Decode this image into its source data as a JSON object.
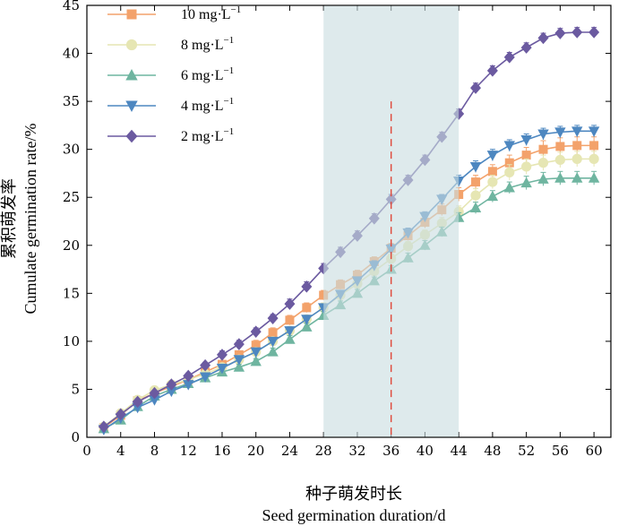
{
  "chart_data": {
    "type": "line",
    "title": "",
    "xlabel_zh": "种子萌发时长",
    "xlabel": "Seed germination duration/d",
    "ylabel_zh": "累积萌发率",
    "ylabel": "Cumulate germination rate/%",
    "xlim": [
      0,
      62
    ],
    "ylim": [
      0,
      45
    ],
    "xticks": [
      0,
      4,
      8,
      12,
      16,
      20,
      24,
      28,
      32,
      36,
      40,
      44,
      48,
      52,
      56,
      60
    ],
    "yticks": [
      0,
      5,
      10,
      15,
      20,
      25,
      30,
      35,
      40,
      45
    ],
    "x": [
      2,
      4,
      6,
      8,
      10,
      12,
      14,
      16,
      18,
      20,
      22,
      24,
      26,
      28,
      30,
      32,
      34,
      36,
      38,
      40,
      42,
      44,
      46,
      48,
      50,
      52,
      54,
      56,
      58,
      60
    ],
    "highlight_region": [
      28,
      44
    ],
    "reference_line_x": 36,
    "legend_position": "top-left",
    "series": [
      {
        "name_value": "10",
        "name_unit": " mg·L",
        "name_sup": "−1",
        "color": "#f3a26b",
        "marker": "square",
        "values": [
          1.0,
          2.3,
          3.8,
          4.6,
          5.3,
          6.0,
          6.8,
          7.6,
          8.6,
          9.6,
          10.9,
          12.2,
          13.5,
          14.8,
          15.9,
          16.9,
          18.3,
          19.7,
          21.0,
          22.4,
          23.7,
          25.3,
          26.6,
          27.7,
          28.6,
          29.4,
          30.0,
          30.3,
          30.4,
          30.4
        ],
        "errors": [
          0.3,
          0.3,
          0.3,
          0.3,
          0.3,
          0.4,
          0.4,
          0.4,
          0.4,
          0.5,
          0.5,
          0.5,
          0.5,
          0.5,
          0.5,
          0.5,
          0.5,
          0.5,
          0.5,
          0.6,
          0.6,
          0.7,
          0.7,
          0.7,
          0.8,
          0.8,
          0.9,
          0.9,
          0.9,
          0.9
        ]
      },
      {
        "name_value": "8",
        "name_unit": " mg·L",
        "name_sup": "−1",
        "color": "#e6e6b3",
        "marker": "circle",
        "values": [
          1.1,
          2.5,
          3.9,
          4.9,
          5.5,
          6.0,
          6.6,
          7.3,
          8.1,
          8.9,
          10.0,
          11.1,
          12.3,
          13.5,
          14.8,
          16.0,
          17.3,
          18.6,
          19.9,
          21.1,
          22.3,
          23.5,
          25.2,
          26.6,
          27.6,
          28.2,
          28.6,
          28.9,
          29.0,
          29.0
        ],
        "errors": [
          0.3,
          0.3,
          0.3,
          0.3,
          0.3,
          0.3,
          0.3,
          0.4,
          0.4,
          0.4,
          0.4,
          0.4,
          0.4,
          0.5,
          0.5,
          0.5,
          0.5,
          0.5,
          0.5,
          0.5,
          0.6,
          0.6,
          0.7,
          0.7,
          0.8,
          0.8,
          0.8,
          0.8,
          0.8,
          0.8
        ]
      },
      {
        "name_value": "6",
        "name_unit": " mg·L",
        "name_sup": "−1",
        "color": "#6fb5a0",
        "marker": "triangle-up",
        "values": [
          0.9,
          1.8,
          3.2,
          4.3,
          5.0,
          5.6,
          6.2,
          6.8,
          7.3,
          7.9,
          8.9,
          10.2,
          11.5,
          12.7,
          13.8,
          15.0,
          16.3,
          17.5,
          18.7,
          20.0,
          21.4,
          22.9,
          23.9,
          25.1,
          26.0,
          26.5,
          26.9,
          27.0,
          27.0,
          27.0
        ],
        "errors": [
          0.3,
          0.3,
          0.3,
          0.3,
          0.3,
          0.3,
          0.3,
          0.3,
          0.3,
          0.3,
          0.4,
          0.4,
          0.4,
          0.4,
          0.4,
          0.4,
          0.4,
          0.4,
          0.5,
          0.5,
          0.5,
          0.5,
          0.6,
          0.6,
          0.6,
          0.7,
          0.7,
          0.7,
          0.7,
          0.7
        ]
      },
      {
        "name_value": "4",
        "name_unit": " mg·L",
        "name_sup": "−1",
        "color": "#4d87c0",
        "marker": "triangle-down",
        "values": [
          0.8,
          2.0,
          3.1,
          3.9,
          4.8,
          5.5,
          6.3,
          7.2,
          8.1,
          8.9,
          10.0,
          11.1,
          12.3,
          13.5,
          14.9,
          16.3,
          17.9,
          19.6,
          21.3,
          23.0,
          24.8,
          26.7,
          28.2,
          29.4,
          30.4,
          31.0,
          31.6,
          31.8,
          31.9,
          31.9
        ],
        "errors": [
          0.2,
          0.3,
          0.3,
          0.3,
          0.3,
          0.3,
          0.3,
          0.3,
          0.3,
          0.3,
          0.4,
          0.4,
          0.4,
          0.4,
          0.4,
          0.4,
          0.5,
          0.5,
          0.5,
          0.5,
          0.5,
          0.6,
          0.6,
          0.6,
          0.6,
          0.6,
          0.6,
          0.6,
          0.6,
          0.6
        ]
      },
      {
        "name_value": "2",
        "name_unit": " mg·L",
        "name_sup": "−1",
        "color": "#6b5aa0",
        "marker": "diamond",
        "values": [
          1.1,
          2.4,
          3.7,
          4.6,
          5.5,
          6.4,
          7.5,
          8.6,
          9.7,
          11.0,
          12.4,
          13.9,
          15.7,
          17.6,
          19.3,
          21.0,
          22.8,
          24.8,
          26.8,
          28.9,
          31.3,
          33.7,
          36.4,
          38.2,
          39.6,
          40.6,
          41.6,
          42.1,
          42.2,
          42.2
        ],
        "errors": [
          0.3,
          0.3,
          0.3,
          0.3,
          0.3,
          0.3,
          0.3,
          0.4,
          0.4,
          0.4,
          0.4,
          0.5,
          0.5,
          0.5,
          0.5,
          0.5,
          0.5,
          0.5,
          0.5,
          0.5,
          0.5,
          0.5,
          0.5,
          0.5,
          0.5,
          0.5,
          0.5,
          0.5,
          0.5,
          0.5
        ]
      }
    ]
  }
}
